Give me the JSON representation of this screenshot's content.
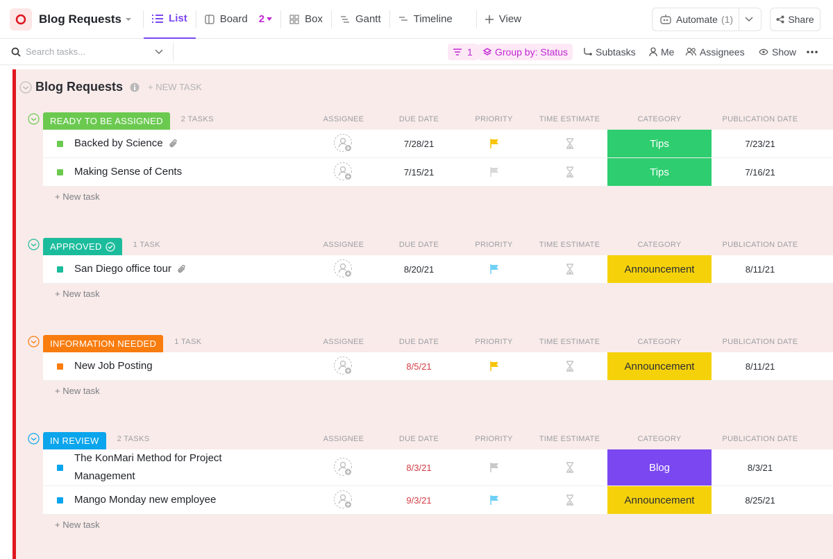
{
  "header": {
    "title": "Blog Requests",
    "tabs": [
      "List",
      "Board",
      "Box",
      "Gantt",
      "Timeline"
    ],
    "board_count": "2",
    "add_view": "View",
    "automate": "Automate",
    "automate_count": "(1)",
    "share": "Share"
  },
  "toolbar": {
    "search_placeholder": "Search tasks...",
    "filter_count": "1",
    "group_by": "Group by: Status",
    "subtasks": "Subtasks",
    "me": "Me",
    "assignees": "Assignees",
    "show": "Show"
  },
  "list": {
    "title": "Blog Requests",
    "new_task": "+ NEW TASK"
  },
  "columns": [
    "ASSIGNEE",
    "DUE DATE",
    "PRIORITY",
    "TIME ESTIMATE",
    "CATEGORY",
    "PUBLICATION DATE"
  ],
  "add_task": "+ New task",
  "groups": [
    {
      "status": "READY TO BE ASSIGNED",
      "color": "#6bc950",
      "count": "2 TASKS",
      "check": false,
      "tasks": [
        {
          "name": "Backed by Science",
          "attachment": true,
          "due": "7/28/21",
          "due_color": "#2a2d33",
          "priority_color": "#f8c40b",
          "category": "Tips",
          "category_color": "#2ecd6f",
          "publication": "7/23/21"
        },
        {
          "name": "Making Sense of Cents",
          "attachment": false,
          "due": "7/15/21",
          "due_color": "#2a2d33",
          "priority_color": "#d8d8d8",
          "category": "Tips",
          "category_color": "#2ecd6f",
          "publication": "7/16/21"
        }
      ]
    },
    {
      "status": "APPROVED",
      "color": "#1bbc9c",
      "count": "1 TASK",
      "check": true,
      "tasks": [
        {
          "name": "San Diego office tour",
          "attachment": true,
          "due": "8/20/21",
          "due_color": "#2a2d33",
          "priority_color": "#6fd0f6",
          "category": "Announcement",
          "category_color": "#f5d10a",
          "publication": "8/11/21"
        }
      ]
    },
    {
      "status": "INFORMATION NEEDED",
      "color": "#f97c0f",
      "count": "1 TASK",
      "check": false,
      "tasks": [
        {
          "name": "New Job Posting",
          "attachment": false,
          "due": "8/5/21",
          "due_color": "#d33d44",
          "priority_color": "#f8c40b",
          "category": "Announcement",
          "category_color": "#f5d10a",
          "publication": "8/11/21"
        }
      ]
    },
    {
      "status": "IN REVIEW",
      "color": "#0aa5ec",
      "count": "2 TASKS",
      "check": false,
      "tasks": [
        {
          "name": "The KonMari Method for Project Management",
          "attachment": false,
          "due": "8/3/21",
          "due_color": "#d33d44",
          "priority_color": "#c8c8c8",
          "category": "Blog",
          "category_color": "#7b47f1",
          "publication": "8/3/21"
        },
        {
          "name": "Mango Monday new employee",
          "attachment": false,
          "due": "9/3/21",
          "due_color": "#d33d44",
          "priority_color": "#6fd0f6",
          "category": "Announcement",
          "category_color": "#f5d10a",
          "publication": "8/25/21"
        }
      ]
    }
  ]
}
